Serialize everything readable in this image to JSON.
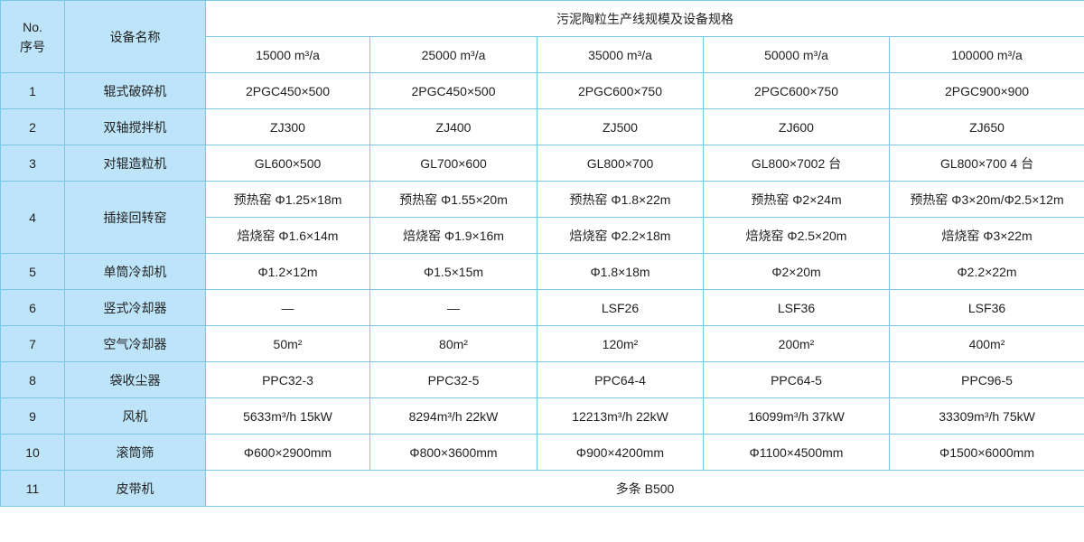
{
  "header": {
    "no_label": "No.",
    "seq_label": "序号",
    "name_label": "设备名称",
    "group_title": "污泥陶粒生产线规模及设备规格",
    "capacities": [
      "15000 m³/a",
      "25000 m³/a",
      "35000 m³/a",
      "50000 m³/a",
      "100000 m³/a"
    ]
  },
  "colors": {
    "side_bg": "#bde4f8",
    "border": "#7cc6ee"
  },
  "rows": [
    {
      "no": "1",
      "name": "辊式破碎机",
      "vals": [
        "2PGC450×500",
        "2PGC450×500",
        "2PGC600×750",
        "2PGC600×750",
        "2PGC900×900"
      ]
    },
    {
      "no": "2",
      "name": "双轴搅拌机",
      "vals": [
        "ZJ300",
        "ZJ400",
        "ZJ500",
        "ZJ600",
        "ZJ650"
      ]
    },
    {
      "no": "3",
      "name": "对辊造粒机",
      "vals": [
        "GL600×500",
        "GL700×600",
        "GL800×700",
        "GL800×7002 台",
        "GL800×700 4 台"
      ]
    },
    {
      "no": "4",
      "name": "插接回转窑",
      "vals": [
        "预热窑 Φ1.25×18m",
        "预热窑 Φ1.55×20m",
        "预热窑 Φ1.8×22m",
        "预热窑 Φ2×24m",
        "预热窑 Φ3×20m/Φ2.5×12m"
      ],
      "vals2": [
        "焙烧窑 Φ1.6×14m",
        "焙烧窑 Φ1.9×16m",
        "焙烧窑 Φ2.2×18m",
        "焙烧窑 Φ2.5×20m",
        "焙烧窑 Φ3×22m"
      ]
    },
    {
      "no": "5",
      "name": "单筒冷却机",
      "vals": [
        "Φ1.2×12m",
        "Φ1.5×15m",
        "Φ1.8×18m",
        "Φ2×20m",
        "Φ2.2×22m"
      ]
    },
    {
      "no": "6",
      "name": "竖式冷却器",
      "vals": [
        "—",
        "—",
        "LSF26",
        "LSF36",
        "LSF36"
      ]
    },
    {
      "no": "7",
      "name": "空气冷却器",
      "vals": [
        "50m²",
        "80m²",
        "120m²",
        "200m²",
        "400m²"
      ]
    },
    {
      "no": "8",
      "name": "袋收尘器",
      "vals": [
        "PPC32-3",
        "PPC32-5",
        "PPC64-4",
        "PPC64-5",
        "PPC96-5"
      ]
    },
    {
      "no": "9",
      "name": "风机",
      "vals": [
        "5633m³/h  15kW",
        "8294m³/h  22kW",
        "12213m³/h  22kW",
        "16099m³/h  37kW",
        "33309m³/h  75kW"
      ]
    },
    {
      "no": "10",
      "name": "滚筒筛",
      "vals": [
        "Φ600×2900mm",
        "Φ800×3600mm",
        "Φ900×4200mm",
        "Φ1100×4500mm",
        "Φ1500×6000mm"
      ]
    },
    {
      "no": "11",
      "name": "皮带机",
      "merged": "多条 B500"
    }
  ]
}
